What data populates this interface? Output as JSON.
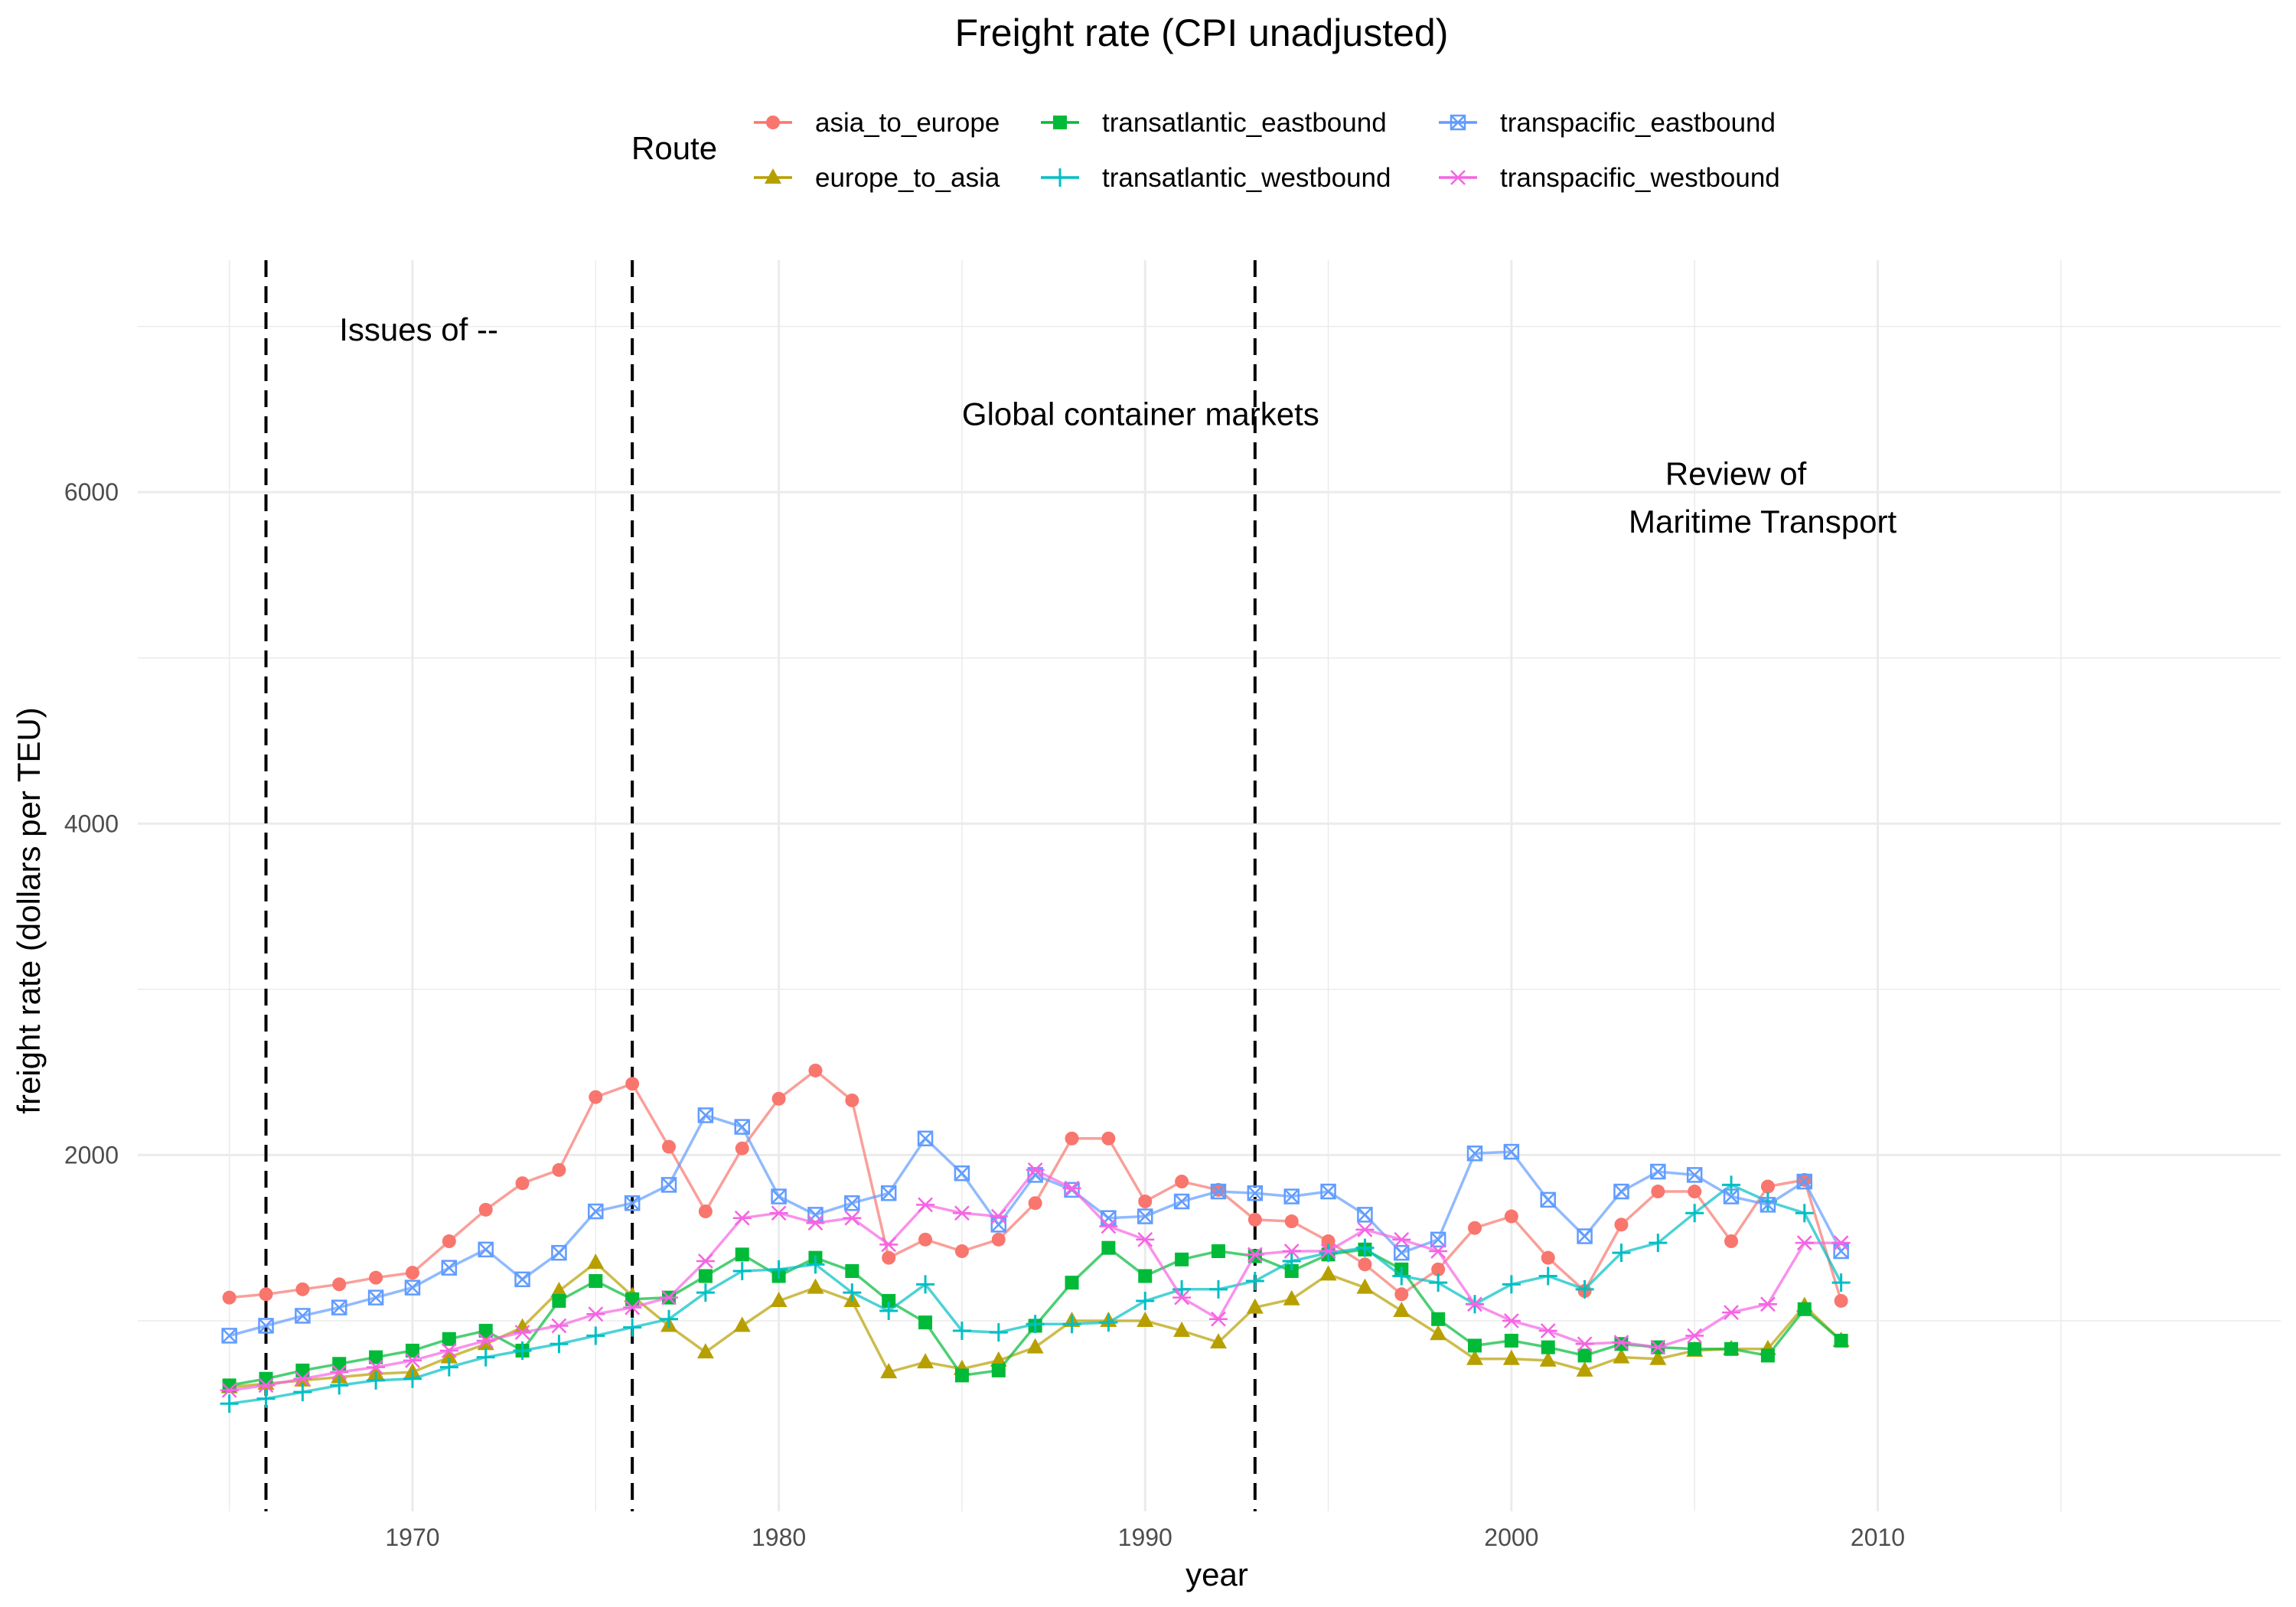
{
  "chart_data": {
    "type": "line",
    "title": "Freight rate (CPI unadjusted)",
    "xlabel": "year",
    "ylabel": "freight rate (dollars per TEU)",
    "xlim": [
      1962.5,
      2021
    ],
    "ylim": [
      -150,
      7400
    ],
    "x_ticks": [
      1970,
      1980,
      1990,
      2000,
      2010
    ],
    "y_ticks": [
      2000,
      4000,
      6000
    ],
    "grid": true,
    "legend": {
      "title": "Route",
      "position": "top"
    },
    "vlines": [
      1966,
      1976,
      1993
    ],
    "annotations": [
      {
        "text": "Issues of --",
        "x": 1968,
        "y": 6980
      },
      {
        "text": "Global container markets",
        "x": 1985,
        "y": 6470
      },
      {
        "text": "Review of",
        "x": 2004.2,
        "y": 6110
      },
      {
        "text": "Maritime Transport",
        "x": 2003.2,
        "y": 5820
      }
    ],
    "x": [
      1965,
      1966,
      1967,
      1968,
      1969,
      1970,
      1971,
      1972,
      1973,
      1974,
      1975,
      1976,
      1977,
      1978,
      1979,
      1980,
      1981,
      1982,
      1983,
      1984,
      1985,
      1986,
      1987,
      1988,
      1989,
      1990,
      1991,
      1992,
      1993,
      1994,
      1995,
      1996,
      1997,
      1998,
      1999,
      2000,
      2001,
      2002,
      2003,
      2004,
      2005,
      2006,
      2007,
      2008,
      2009
    ],
    "series": [
      {
        "name": "asia_to_europe",
        "color": "#F8766D",
        "shape": "circle",
        "values": [
          1140,
          1160,
          1190,
          1220,
          1260,
          1290,
          1480,
          1670,
          1830,
          1910,
          2350,
          2430,
          2050,
          1660,
          2040,
          2340,
          2510,
          2330,
          1380,
          1490,
          1420,
          1490,
          1710,
          2100,
          2100,
          1720,
          1840,
          1790,
          1610,
          1600,
          1480,
          1340,
          1160,
          1310,
          1560,
          1630,
          1380,
          1180,
          1580,
          1780,
          1780,
          1480,
          1810,
          1850,
          1120
        ]
      },
      {
        "name": "europe_to_asia",
        "color": "#B79F00",
        "shape": "triangle",
        "values": [
          600,
          620,
          640,
          660,
          680,
          690,
          780,
          860,
          960,
          1180,
          1350,
          1150,
          970,
          810,
          970,
          1120,
          1200,
          1120,
          690,
          750,
          710,
          760,
          840,
          1000,
          1000,
          1000,
          940,
          870,
          1080,
          1130,
          1280,
          1200,
          1060,
          920,
          770,
          770,
          760,
          700,
          780,
          770,
          820,
          830,
          830,
          1090,
          880
        ]
      },
      {
        "name": "transatlantic_eastbound",
        "color": "#00BA38",
        "shape": "square",
        "values": [
          610,
          650,
          700,
          740,
          780,
          820,
          890,
          940,
          820,
          1120,
          1240,
          1130,
          1140,
          1270,
          1400,
          1270,
          1380,
          1300,
          1120,
          990,
          670,
          700,
          970,
          1230,
          1440,
          1270,
          1370,
          1420,
          1390,
          1300,
          1400,
          1430,
          1310,
          1010,
          850,
          880,
          840,
          790,
          860,
          840,
          830,
          830,
          790,
          1070,
          880
        ]
      },
      {
        "name": "transatlantic_westbound",
        "color": "#00BFC4",
        "shape": "plus",
        "values": [
          500,
          530,
          570,
          610,
          640,
          650,
          720,
          780,
          820,
          860,
          910,
          960,
          1010,
          1170,
          1300,
          1310,
          1340,
          1170,
          1060,
          1220,
          940,
          930,
          980,
          980,
          990,
          1120,
          1190,
          1190,
          1240,
          1360,
          1410,
          1440,
          1270,
          1230,
          1100,
          1220,
          1270,
          1190,
          1410,
          1470,
          1650,
          1820,
          1720,
          1650,
          1230
        ]
      },
      {
        "name": "transpacific_eastbound",
        "color": "#619CFF",
        "shape": "boxx",
        "values": [
          910,
          970,
          1030,
          1080,
          1140,
          1200,
          1320,
          1430,
          1250,
          1410,
          1660,
          1710,
          1820,
          2240,
          2170,
          1750,
          1640,
          1710,
          1770,
          2100,
          1890,
          1580,
          1880,
          1790,
          1620,
          1630,
          1720,
          1780,
          1770,
          1750,
          1780,
          1640,
          1410,
          1490,
          2010,
          2020,
          1730,
          1510,
          1780,
          1900,
          1880,
          1750,
          1700,
          1840,
          1420
        ]
      },
      {
        "name": "transpacific_westbound",
        "color": "#F564E3",
        "shape": "asterisk",
        "values": [
          580,
          610,
          650,
          690,
          720,
          760,
          820,
          880,
          930,
          970,
          1040,
          1080,
          1140,
          1360,
          1620,
          1650,
          1590,
          1620,
          1460,
          1700,
          1650,
          1630,
          1910,
          1800,
          1570,
          1490,
          1140,
          1010,
          1400,
          1420,
          1420,
          1550,
          1490,
          1420,
          1100,
          1000,
          940,
          860,
          870,
          840,
          910,
          1050,
          1100,
          1470,
          1470
        ]
      }
    ]
  }
}
